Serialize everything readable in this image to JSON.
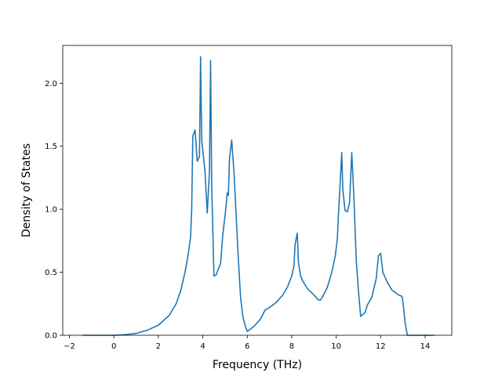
{
  "chart_data": {
    "type": "line",
    "title": "",
    "xlabel": "Frequency (THz)",
    "ylabel": "Density of States",
    "xlim": [
      -2.3,
      15.2
    ],
    "ylim": [
      0.0,
      2.3
    ],
    "grid": false,
    "xticks": [
      -2,
      0,
      2,
      4,
      6,
      8,
      10,
      12,
      14
    ],
    "xtick_labels": [
      "−2",
      "0",
      "2",
      "4",
      "6",
      "8",
      "10",
      "12",
      "14"
    ],
    "yticks": [
      0.0,
      0.5,
      1.0,
      1.5,
      2.0
    ],
    "ytick_labels": [
      "0.0",
      "0.5",
      "1.0",
      "1.5",
      "2.0"
    ],
    "series": [
      {
        "color": "#1f77b4",
        "x": [
          -1.4,
          0.0,
          0.5,
          1.0,
          1.5,
          2.0,
          2.5,
          2.8,
          3.0,
          3.2,
          3.35,
          3.45,
          3.5,
          3.55,
          3.65,
          3.75,
          3.85,
          3.9,
          3.95,
          4.1,
          4.2,
          4.3,
          4.35,
          4.4,
          4.5,
          4.6,
          4.8,
          4.9,
          5.0,
          5.1,
          5.15,
          5.2,
          5.3,
          5.4,
          5.5,
          5.6,
          5.7,
          5.8,
          5.9,
          6.0,
          6.3,
          6.6,
          6.8,
          7.0,
          7.3,
          7.6,
          7.8,
          8.0,
          8.1,
          8.15,
          8.25,
          8.3,
          8.4,
          8.5,
          8.7,
          9.0,
          9.2,
          9.3,
          9.4,
          9.6,
          9.8,
          9.95,
          10.05,
          10.1,
          10.2,
          10.25,
          10.3,
          10.4,
          10.5,
          10.6,
          10.7,
          10.8,
          10.9,
          11.0,
          11.1,
          11.3,
          11.4,
          11.6,
          11.8,
          11.9,
          12.0,
          12.1,
          12.3,
          12.5,
          12.8,
          12.95,
          13.0,
          13.1,
          13.2,
          14.4
        ],
        "y": [
          0.0,
          0.0,
          0.005,
          0.015,
          0.04,
          0.08,
          0.16,
          0.25,
          0.35,
          0.5,
          0.65,
          0.78,
          1.0,
          1.58,
          1.63,
          1.38,
          1.42,
          2.21,
          1.55,
          1.3,
          0.97,
          1.3,
          2.18,
          1.2,
          0.47,
          0.48,
          0.57,
          0.8,
          0.95,
          1.13,
          1.11,
          1.4,
          1.55,
          1.3,
          0.95,
          0.6,
          0.3,
          0.15,
          0.08,
          0.03,
          0.07,
          0.13,
          0.2,
          0.22,
          0.26,
          0.32,
          0.38,
          0.47,
          0.55,
          0.72,
          0.81,
          0.58,
          0.47,
          0.43,
          0.37,
          0.32,
          0.28,
          0.28,
          0.31,
          0.38,
          0.5,
          0.62,
          0.76,
          0.95,
          1.28,
          1.45,
          1.15,
          0.99,
          0.98,
          1.05,
          1.45,
          1.08,
          0.6,
          0.35,
          0.15,
          0.18,
          0.24,
          0.3,
          0.45,
          0.63,
          0.65,
          0.5,
          0.42,
          0.36,
          0.32,
          0.31,
          0.27,
          0.1,
          0.0,
          0.0
        ]
      }
    ]
  }
}
